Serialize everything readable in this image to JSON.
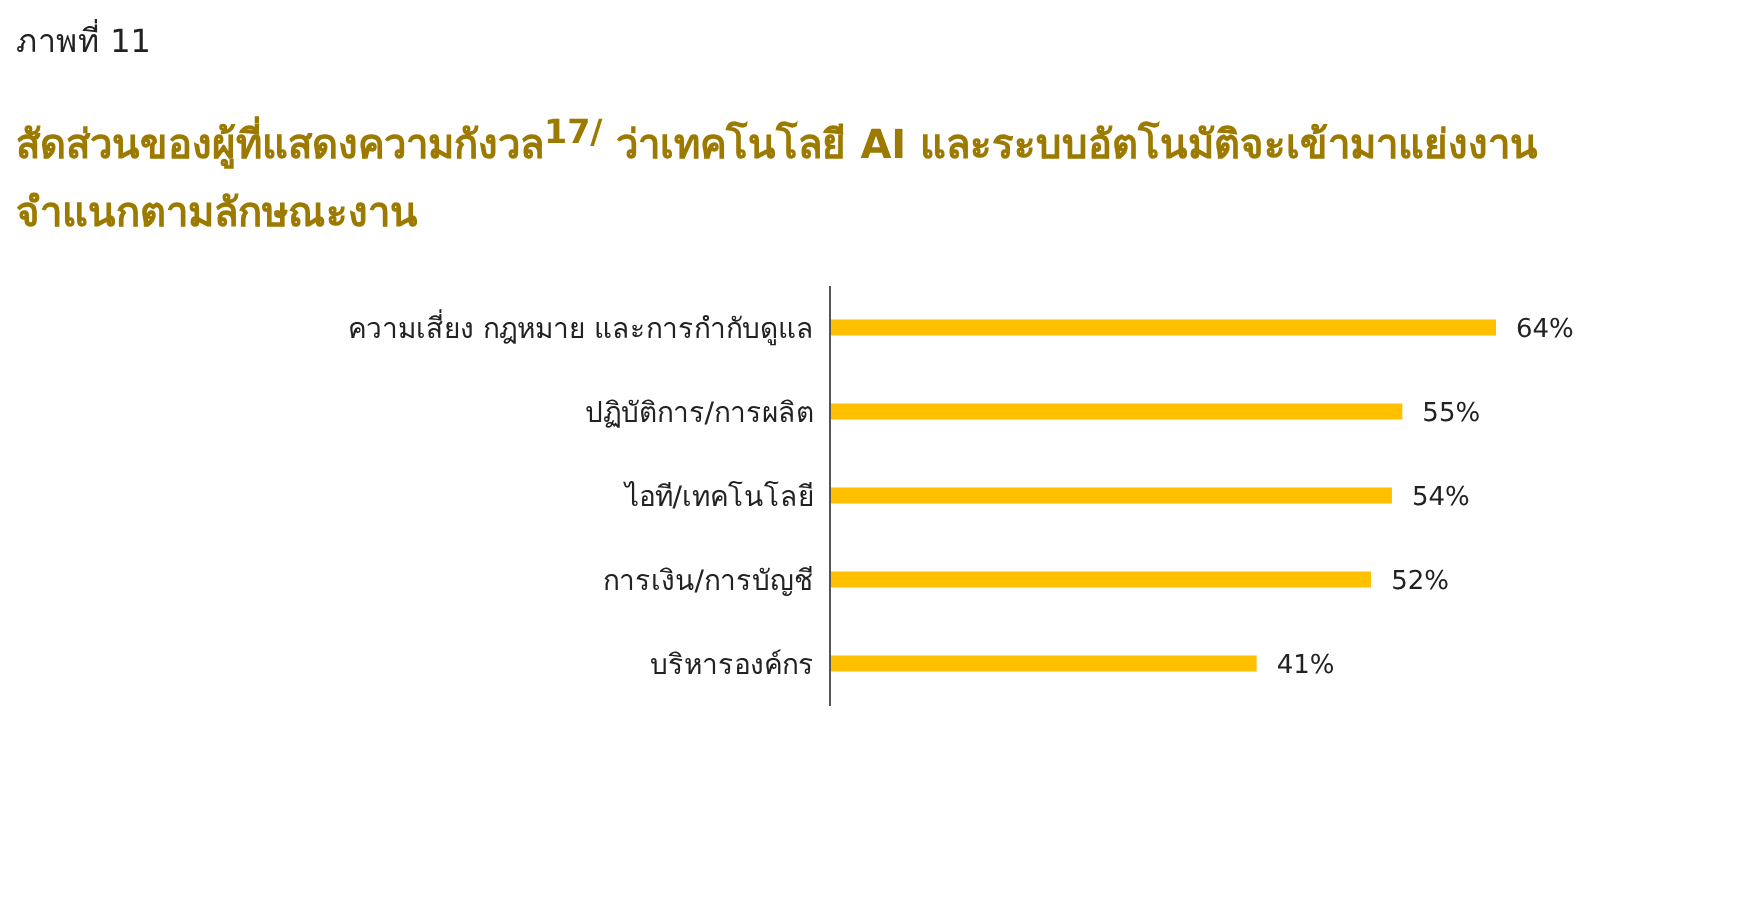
{
  "chart_data": {
    "type": "bar",
    "orientation": "horizontal",
    "subtitle": "ภาพที่ 11",
    "title": "สัดส่วนของผู้ที่แสดงความกังวล$^{17/}$ ว่าเทคโนโลยี AI และระบบอัตโนมัติจะเข้ามาแย่งงาน\nจำแนกตามลักษณะงาน",
    "categories": [
      "ความเสี่ยง กฎหมาย และการกำกับดูแล",
      "ปฏิบัติการ/การผลิต",
      "ไอที/เทคโนโลยี",
      "การเงิน/การบัญชี",
      "บริหารองค์กร"
    ],
    "values": [
      64,
      55,
      54,
      52,
      41
    ],
    "value_labels": [
      "64%",
      "55%",
      "54%",
      "52%",
      "41%"
    ],
    "color": "#ffc000"
  }
}
